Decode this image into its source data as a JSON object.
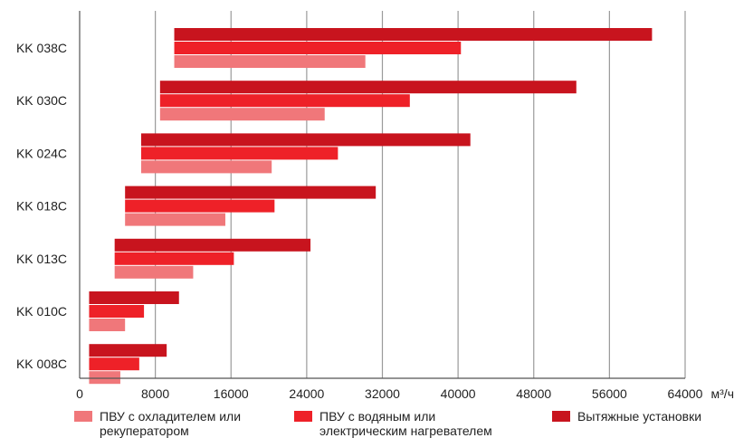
{
  "chart_data": {
    "type": "bar",
    "orientation": "horizontal",
    "categories": [
      "KK 038C",
      "KK 030C",
      "KK 024C",
      "KK 018C",
      "KK 013C",
      "KK 010C",
      "KK 008C"
    ],
    "series": [
      {
        "name": "Вытяжные установки",
        "color": "#C8141E",
        "ranges": [
          [
            10000,
            60500
          ],
          [
            8500,
            52500
          ],
          [
            6500,
            41300
          ],
          [
            4800,
            31300
          ],
          [
            3700,
            24400
          ],
          [
            1000,
            10500
          ],
          [
            1000,
            9200
          ]
        ]
      },
      {
        "name": "ПВУ с водяным или электрическим нагревателем",
        "color": "#EE2128",
        "ranges": [
          [
            10000,
            40300
          ],
          [
            8500,
            34900
          ],
          [
            6500,
            27300
          ],
          [
            4800,
            20600
          ],
          [
            3700,
            16300
          ],
          [
            1000,
            6800
          ],
          [
            1000,
            6300
          ]
        ]
      },
      {
        "name": "ПВУ с охладителем или рекуператором",
        "color": "#F0777A",
        "ranges": [
          [
            10000,
            30200
          ],
          [
            8500,
            25900
          ],
          [
            6500,
            20300
          ],
          [
            4800,
            15400
          ],
          [
            3700,
            12000
          ],
          [
            1000,
            4800
          ],
          [
            1000,
            4300
          ]
        ]
      }
    ],
    "x_ticks": [
      "0",
      "8000",
      "16000",
      "24000",
      "32000",
      "40000",
      "48000",
      "56000",
      "64000"
    ],
    "xlim": [
      0,
      64000
    ],
    "unit": "м³/ч",
    "grid": "vertical",
    "legend_position": "bottom"
  },
  "legend": [
    {
      "color": "#F0777A",
      "line1": "ПВУ с охладителем или",
      "line2": "рекуператором"
    },
    {
      "color": "#EE2128",
      "line1": "ПВУ с водяным или",
      "line2": "электрическим нагревателем"
    },
    {
      "color": "#C8141E",
      "line1": "Вытяжные установки",
      "line2": ""
    }
  ]
}
